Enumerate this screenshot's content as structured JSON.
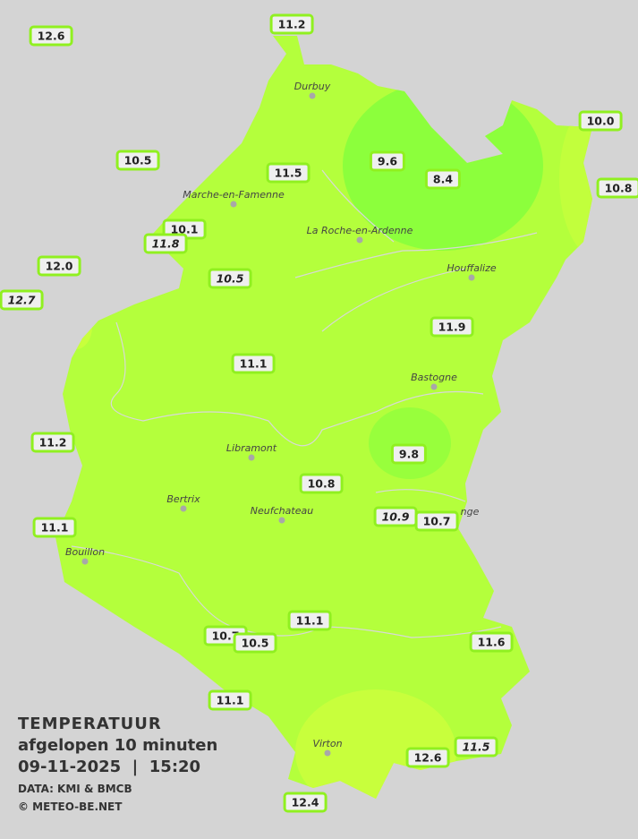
{
  "legend": {
    "title": "TEMPERATUUR",
    "period": "afgelopen 10 minuten",
    "datetime": "09-11-2025  |  15:20",
    "source": "DATA: KMI & BMCB",
    "copyright": "© METEO-BE.NET"
  },
  "colors": {
    "background": "#d4d4d4",
    "base_zone": "#b4ff3c",
    "cool_zone": "#8cff3c",
    "warm_zone": "#c8ff3c",
    "station_border": "#90f020"
  },
  "towns": [
    "Durbuy",
    "Marche-en-Famenne",
    "La Roche-en-Ardenne",
    "Houffalize",
    "Bastogne",
    "Libramont",
    "Bertrix",
    "Neufchateau",
    "Bouillon",
    "Virton",
    "nge"
  ],
  "stations": [
    {
      "value": "12.6",
      "italic": false
    },
    {
      "value": "11.2",
      "italic": false
    },
    {
      "value": "10.0",
      "italic": false
    },
    {
      "value": "9.6",
      "italic": false
    },
    {
      "value": "8.4",
      "italic": false
    },
    {
      "value": "10.5",
      "italic": false
    },
    {
      "value": "11.5",
      "italic": false
    },
    {
      "value": "10.8",
      "italic": false
    },
    {
      "value": "10.1",
      "italic": false
    },
    {
      "value": "11.8",
      "italic": true
    },
    {
      "value": "12.0",
      "italic": false
    },
    {
      "value": "12.7",
      "italic": true
    },
    {
      "value": "10.5",
      "italic": true
    },
    {
      "value": "11.9",
      "italic": false
    },
    {
      "value": "11.1",
      "italic": false
    },
    {
      "value": "11.2",
      "italic": false
    },
    {
      "value": "9.8",
      "italic": false
    },
    {
      "value": "10.8",
      "italic": false
    },
    {
      "value": "10.9",
      "italic": true
    },
    {
      "value": "10.7",
      "italic": false
    },
    {
      "value": "11.1",
      "italic": false
    },
    {
      "value": "11.1",
      "italic": false
    },
    {
      "value": "10.7",
      "italic": false
    },
    {
      "value": "10.5",
      "italic": false
    },
    {
      "value": "11.6",
      "italic": false
    },
    {
      "value": "11.1",
      "italic": false
    },
    {
      "value": "12.6",
      "italic": false
    },
    {
      "value": "11.5",
      "italic": true
    },
    {
      "value": "12.4",
      "italic": false
    }
  ]
}
